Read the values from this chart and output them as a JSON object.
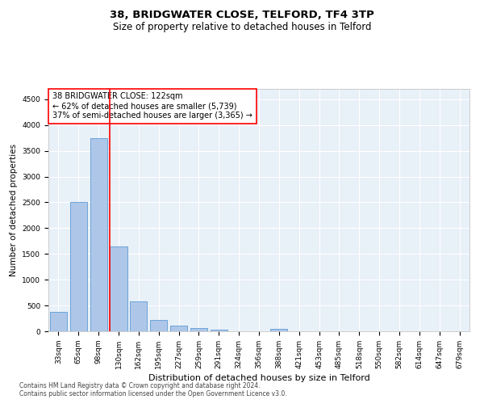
{
  "title1": "38, BRIDGWATER CLOSE, TELFORD, TF4 3TP",
  "title2": "Size of property relative to detached houses in Telford",
  "xlabel": "Distribution of detached houses by size in Telford",
  "ylabel": "Number of detached properties",
  "categories": [
    "33sqm",
    "65sqm",
    "98sqm",
    "130sqm",
    "162sqm",
    "195sqm",
    "227sqm",
    "259sqm",
    "291sqm",
    "324sqm",
    "356sqm",
    "388sqm",
    "421sqm",
    "453sqm",
    "485sqm",
    "518sqm",
    "550sqm",
    "582sqm",
    "614sqm",
    "647sqm",
    "679sqm"
  ],
  "values": [
    370,
    2500,
    3750,
    1640,
    580,
    225,
    105,
    55,
    35,
    0,
    0,
    45,
    0,
    0,
    0,
    0,
    0,
    0,
    0,
    0,
    0
  ],
  "bar_color": "#aec6e8",
  "bar_edge_color": "#5b9bd5",
  "vline_color": "red",
  "vline_x": 2.575,
  "ylim": [
    0,
    4700
  ],
  "yticks": [
    0,
    500,
    1000,
    1500,
    2000,
    2500,
    3000,
    3500,
    4000,
    4500
  ],
  "annotation_line1": "38 BRIDGWATER CLOSE: 122sqm",
  "annotation_line2": "← 62% of detached houses are smaller (5,739)",
  "annotation_line3": "37% of semi-detached houses are larger (3,365) →",
  "footer1": "Contains HM Land Registry data © Crown copyright and database right 2024.",
  "footer2": "Contains public sector information licensed under the Open Government Licence v3.0.",
  "background_color": "#e8f0f8",
  "grid_color": "#ffffff",
  "title1_fontsize": 9.5,
  "title2_fontsize": 8.5,
  "xlabel_fontsize": 8,
  "ylabel_fontsize": 7.5,
  "tick_fontsize": 6.5,
  "annotation_fontsize": 7,
  "footer_fontsize": 5.5
}
